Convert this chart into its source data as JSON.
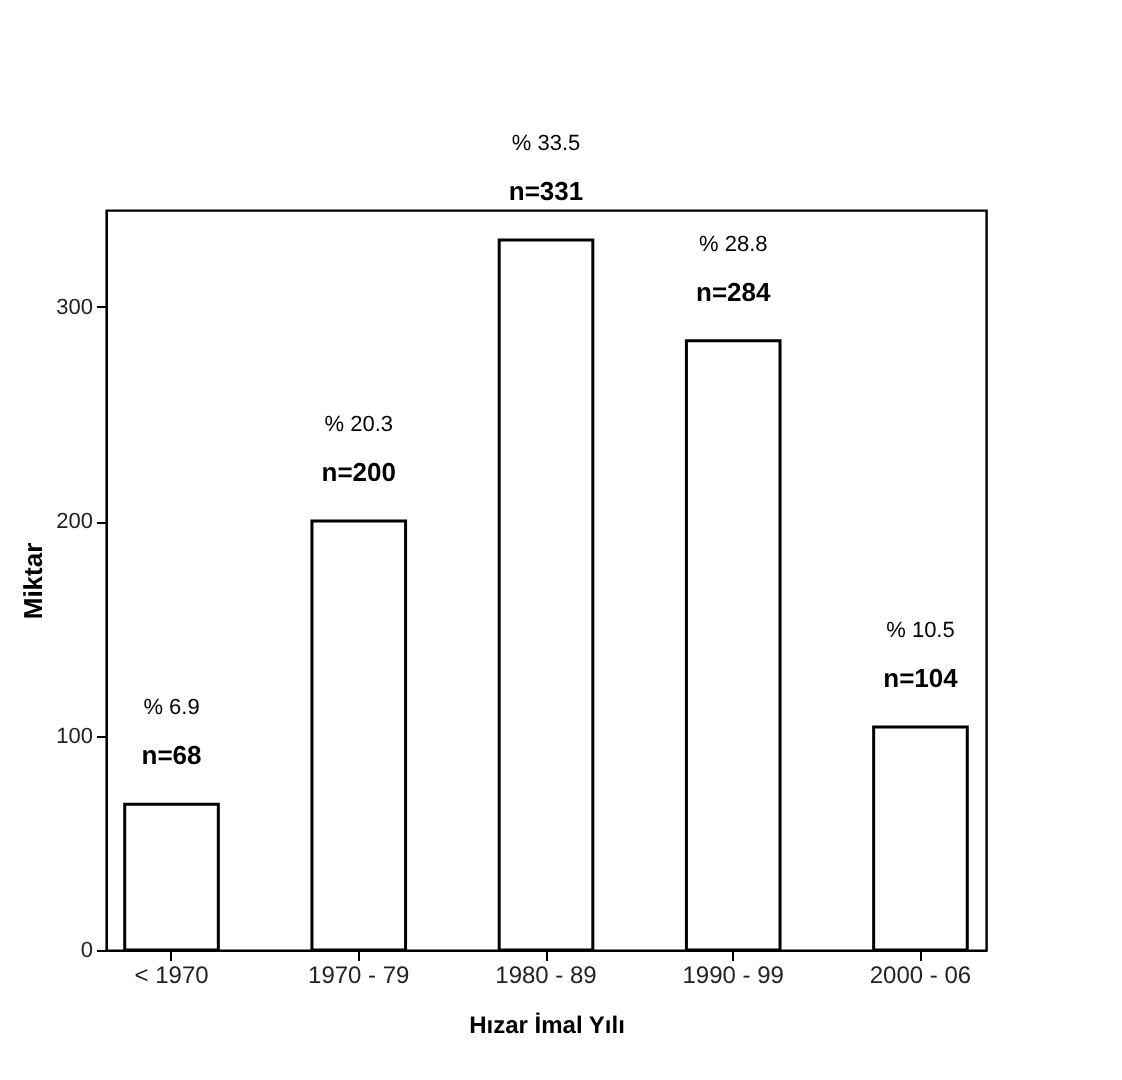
{
  "chart_data": {
    "type": "bar",
    "xlabel": "Hızar İmal Yılı",
    "ylabel": "Miktar",
    "categories": [
      "< 1970",
      "1970 - 79",
      "1980 - 89",
      "1990 - 99",
      "2000 - 06"
    ],
    "values": [
      68,
      200,
      331,
      284,
      104
    ],
    "color": "#ffffff",
    "value_labels": [
      "n=68",
      "n=200",
      "n=331",
      "n=284",
      "n=104"
    ],
    "annotations": [
      "% 6.9",
      "% 20.3",
      "% 33.5",
      "% 28.8",
      "% 10.5"
    ],
    "ylim": [
      0,
      345
    ],
    "yticks": [
      0,
      100,
      200,
      300
    ],
    "grid": false
  }
}
